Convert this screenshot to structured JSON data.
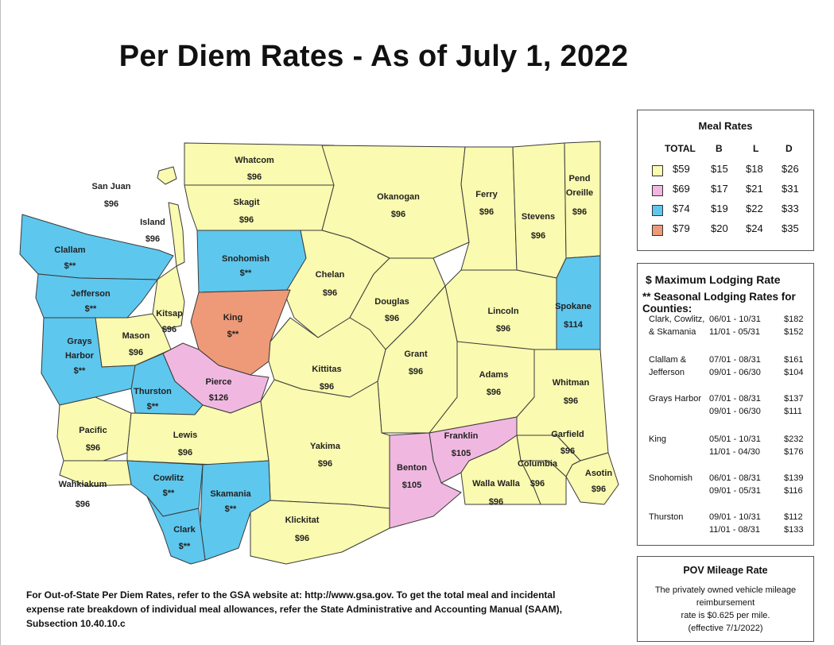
{
  "title": "Per Diem Rates - As of July 1, 2022",
  "colors": {
    "tier59": "#fafab0",
    "tier69": "#f0b8e0",
    "tier74": "#5ec7ee",
    "tier79": "#ee9978",
    "border": "#3a3a3a"
  },
  "counties": [
    {
      "name": "Whatcom",
      "rate": "$96",
      "tier": "tier59"
    },
    {
      "name": "San Juan",
      "rate": "$96",
      "tier": "tier59"
    },
    {
      "name": "Skagit",
      "rate": "$96",
      "tier": "tier59"
    },
    {
      "name": "Island",
      "rate": "$96",
      "tier": "tier59"
    },
    {
      "name": "Okanogan",
      "rate": "$96",
      "tier": "tier59"
    },
    {
      "name": "Ferry",
      "rate": "$96",
      "tier": "tier59"
    },
    {
      "name": "Stevens",
      "rate": "$96",
      "tier": "tier59"
    },
    {
      "name": "Pend Oreille",
      "rate": "$96",
      "tier": "tier59"
    },
    {
      "name": "Clallam",
      "rate": "$**",
      "tier": "tier74"
    },
    {
      "name": "Snohomish",
      "rate": "$**",
      "tier": "tier74"
    },
    {
      "name": "Chelan",
      "rate": "$96",
      "tier": "tier59"
    },
    {
      "name": "Jefferson",
      "rate": "$**",
      "tier": "tier74"
    },
    {
      "name": "Douglas",
      "rate": "$96",
      "tier": "tier59"
    },
    {
      "name": "Lincoln",
      "rate": "$96",
      "tier": "tier59"
    },
    {
      "name": "Spokane",
      "rate": "$114",
      "tier": "tier74"
    },
    {
      "name": "Kitsap",
      "rate": "$96",
      "tier": "tier59"
    },
    {
      "name": "King",
      "rate": "$**",
      "tier": "tier79"
    },
    {
      "name": "Mason",
      "rate": "$96",
      "tier": "tier59"
    },
    {
      "name": "Grays Harbor",
      "rate": "$**",
      "tier": "tier74"
    },
    {
      "name": "Grant",
      "rate": "$96",
      "tier": "tier59"
    },
    {
      "name": "Kittitas",
      "rate": "$96",
      "tier": "tier59"
    },
    {
      "name": "Pierce",
      "rate": "$126",
      "tier": "tier69"
    },
    {
      "name": "Adams",
      "rate": "$96",
      "tier": "tier59"
    },
    {
      "name": "Whitman",
      "rate": "$96",
      "tier": "tier59"
    },
    {
      "name": "Thurston",
      "rate": "$**",
      "tier": "tier74"
    },
    {
      "name": "Pacific",
      "rate": "$96",
      "tier": "tier59"
    },
    {
      "name": "Lewis",
      "rate": "$96",
      "tier": "tier59"
    },
    {
      "name": "Franklin",
      "rate": "$105",
      "tier": "tier69"
    },
    {
      "name": "Garfield",
      "rate": "$96",
      "tier": "tier59"
    },
    {
      "name": "Yakima",
      "rate": "$96",
      "tier": "tier59"
    },
    {
      "name": "Columbia",
      "rate": "$96",
      "tier": "tier59"
    },
    {
      "name": "Benton",
      "rate": "$105",
      "tier": "tier69"
    },
    {
      "name": "Asotin",
      "rate": "$96",
      "tier": "tier59"
    },
    {
      "name": "Cowlitz",
      "rate": "$**",
      "tier": "tier74"
    },
    {
      "name": "Wahkiakum",
      "rate": "$96",
      "tier": "tier59"
    },
    {
      "name": "Walla Walla",
      "rate": "$96",
      "tier": "tier59"
    },
    {
      "name": "Skamania",
      "rate": "$**",
      "tier": "tier74"
    },
    {
      "name": "Klickitat",
      "rate": "$96",
      "tier": "tier59"
    },
    {
      "name": "Clark",
      "rate": "$**",
      "tier": "tier74"
    }
  ],
  "meal_rates": {
    "title": "Meal Rates",
    "headers": [
      "TOTAL",
      "B",
      "L",
      "D"
    ],
    "rows": [
      {
        "total": "$59",
        "b": "$15",
        "l": "$18",
        "d": "$26",
        "tier": "tier59"
      },
      {
        "total": "$69",
        "b": "$17",
        "l": "$21",
        "d": "$31",
        "tier": "tier69"
      },
      {
        "total": "$74",
        "b": "$19",
        "l": "$22",
        "d": "$33",
        "tier": "tier74"
      },
      {
        "total": "$79",
        "b": "$20",
        "l": "$24",
        "d": "$35",
        "tier": "tier79"
      }
    ]
  },
  "lodging": {
    "heading1": "$ Maximum Lodging Rate",
    "heading2": "** Seasonal Lodging Rates for Counties:",
    "rows": [
      {
        "county": "Clark, Cowlitz, & Skamania",
        "dates": [
          "06/01 - 10/31",
          "11/01 - 05/31"
        ],
        "rates": [
          "$182",
          "$152"
        ]
      },
      {
        "county": "Clallam & Jefferson",
        "dates": [
          "07/01 - 08/31",
          "09/01 - 06/30"
        ],
        "rates": [
          "$161",
          "$104"
        ]
      },
      {
        "county": "Grays Harbor",
        "dates": [
          "07/01 - 08/31",
          "09/01 - 06/30"
        ],
        "rates": [
          "$137",
          "$111"
        ]
      },
      {
        "county": "King",
        "dates": [
          "05/01 - 10/31",
          "11/01 - 04/30"
        ],
        "rates": [
          "$232",
          "$176"
        ]
      },
      {
        "county": "Snohomish",
        "dates": [
          "06/01 - 08/31",
          "09/01 - 05/31"
        ],
        "rates": [
          "$139",
          "$116"
        ]
      },
      {
        "county": "Thurston",
        "dates": [
          "09/01 - 10/31",
          "11/01 - 08/31"
        ],
        "rates": [
          "$112",
          "$133"
        ]
      }
    ]
  },
  "pov": {
    "title": "POV Mileage Rate",
    "line1": "The privately owned vehicle mileage",
    "line2": "reimbursement",
    "line3": "rate is $0.625 per mile.",
    "line4": "(effective 7/1/2022)"
  },
  "footnote": {
    "line1": "For Out-of-State Per Diem Rates, refer to the GSA website at: http://www.gsa.gov. To get the total meal and incidental",
    "line2": "expense rate breakdown of individual meal allowances, refer the State Administrative and Accounting Manual (SAAM),",
    "line3": "Subsection 10.40.10.c"
  }
}
